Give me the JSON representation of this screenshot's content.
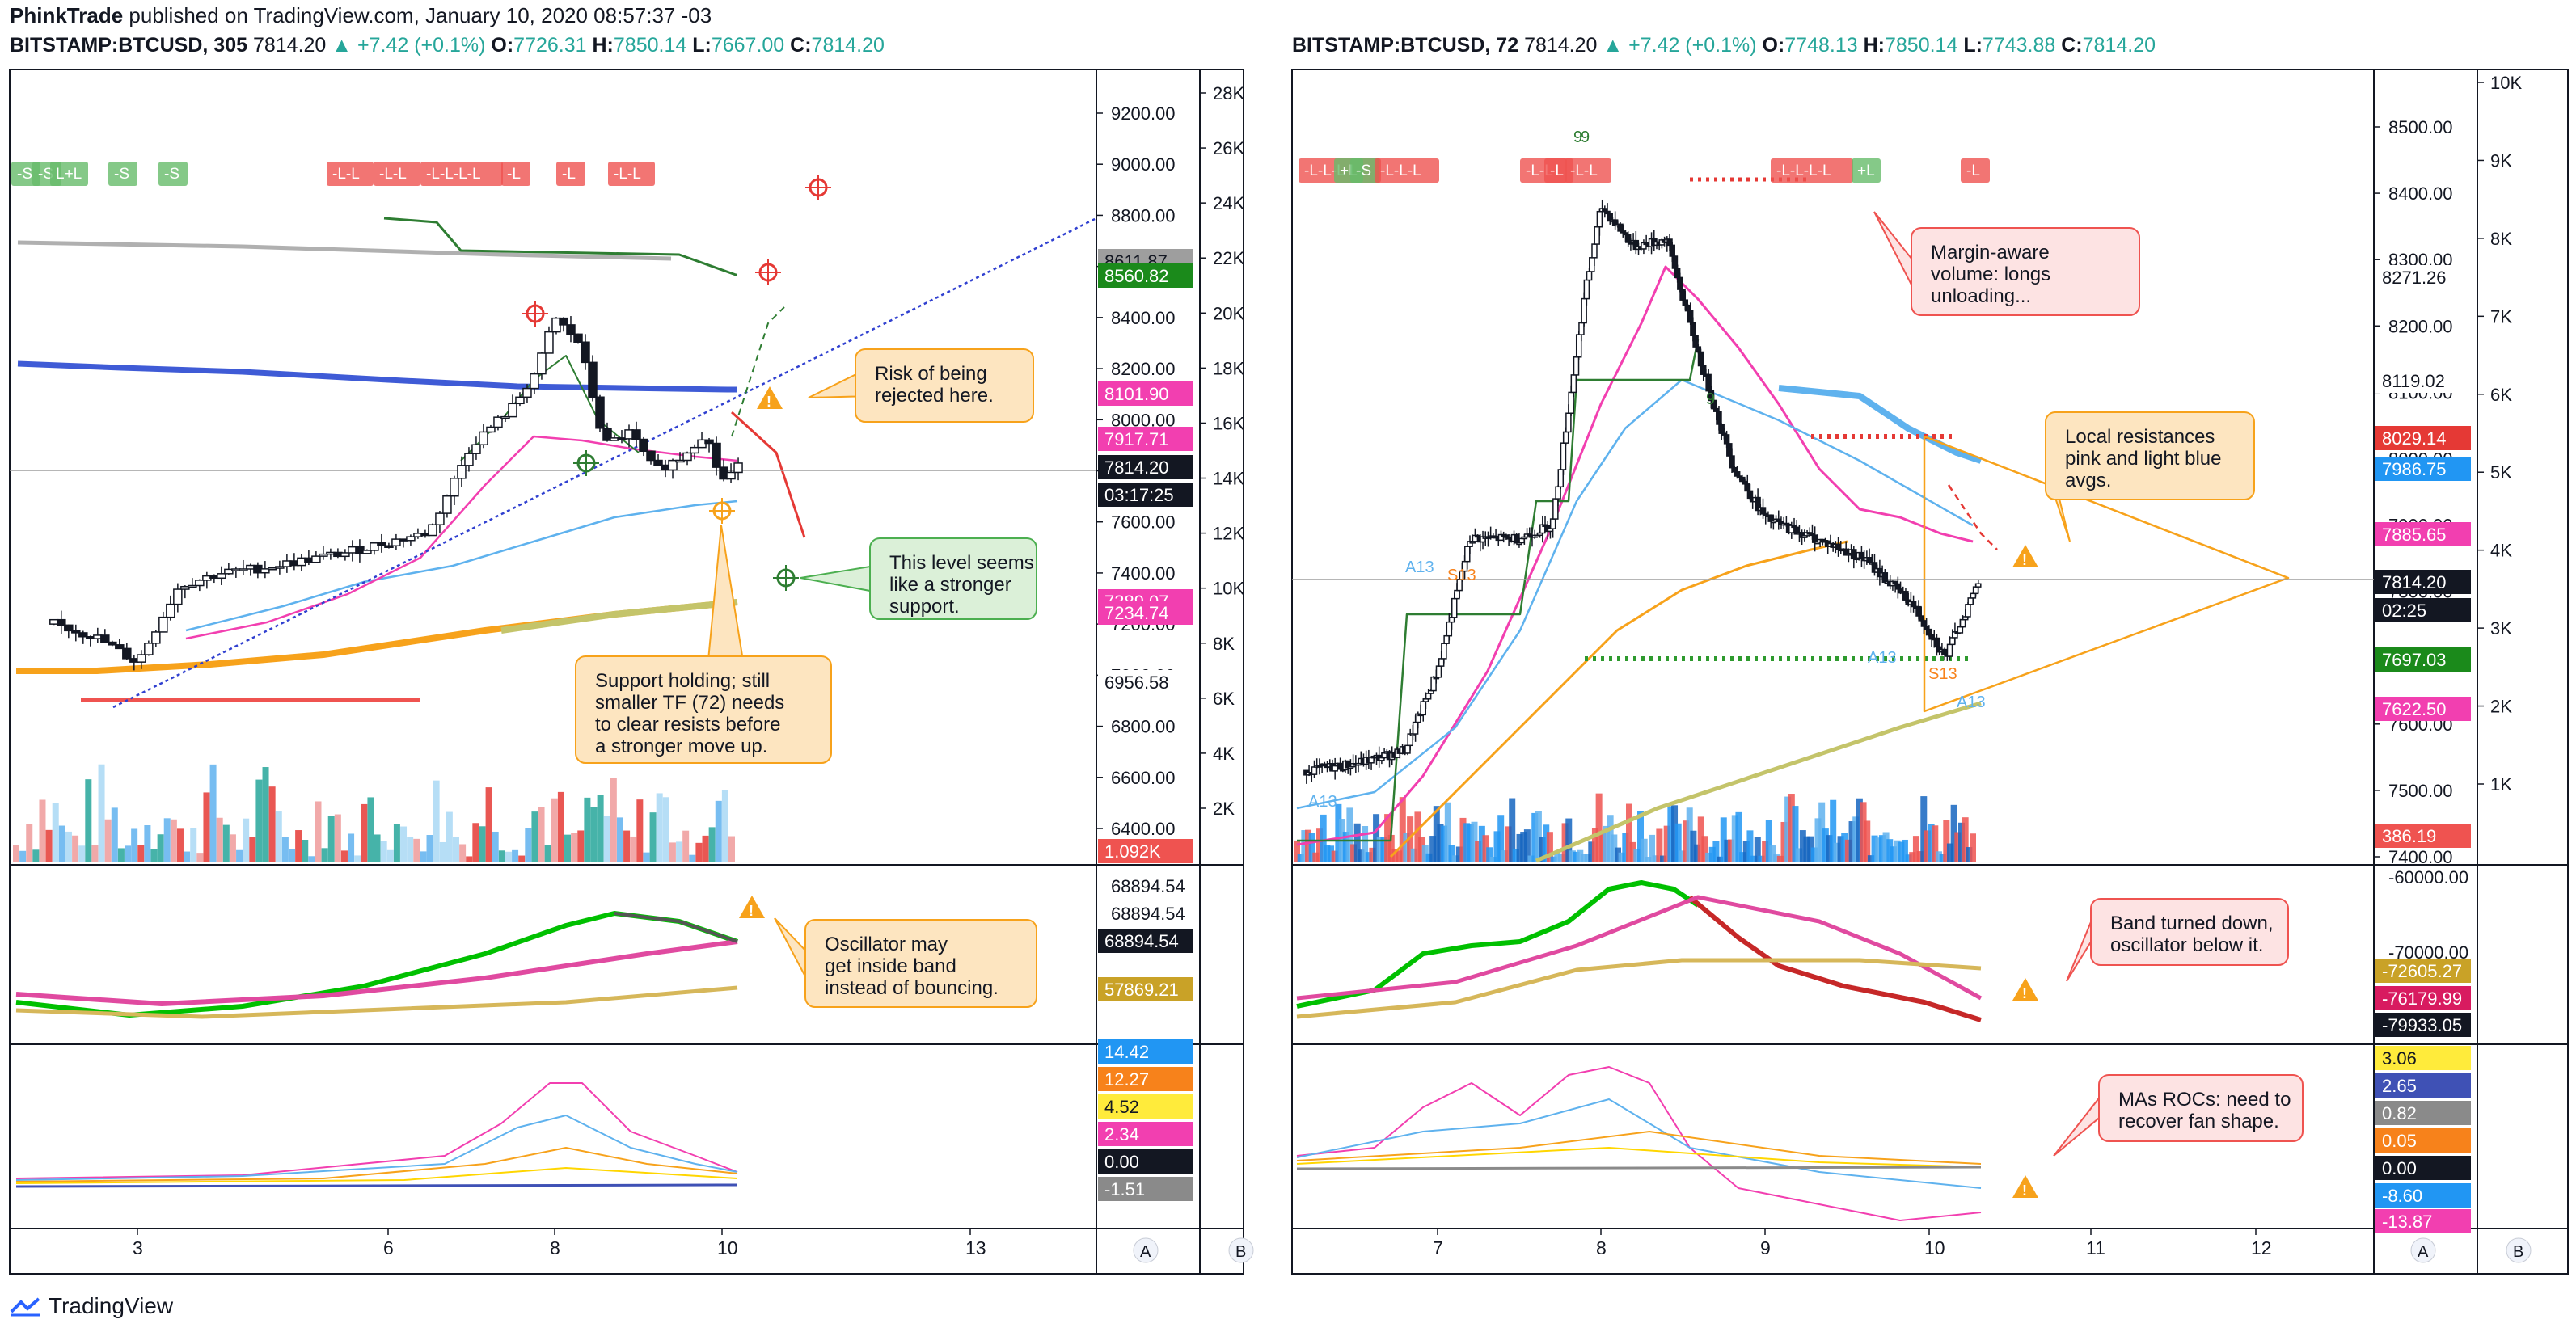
{
  "header": {
    "author": "PhinkTrade",
    "published_text": "published on TradingView.com, January 10, 2020 08:57:37 -03"
  },
  "footer": {
    "brand": "TradingView"
  },
  "colors": {
    "up": "#26a69a",
    "down": "#ef5350",
    "pink": "#f23fb0",
    "blue": "#3f5bd6",
    "lightblue": "#5fb2ee",
    "green": "#2e7d32",
    "orange": "#f7a21b",
    "olive": "#c4c46a",
    "gray": "#9e9e9e",
    "dark": "#131722"
  },
  "left": {
    "ohlc": {
      "symbol": "BITSTAMP:BTCUSD, 305",
      "last": "7814.20",
      "change": "+7.42 (+0.1%)",
      "o": "7726.31",
      "h": "7850.14",
      "l": "7667.00",
      "c": "7814.20"
    },
    "price_ticks": [
      "9200.00",
      "9000.00",
      "8800.00",
      "8600.00",
      "8400.00",
      "8200.00",
      "8000.00",
      "7800.00",
      "7600.00",
      "7400.00",
      "7200.00",
      "7000.00",
      "6800.00",
      "6600.00",
      "6400.00"
    ],
    "volume_ticks": [
      "28K",
      "26K",
      "24K",
      "22K",
      "20K",
      "18K",
      "16K",
      "14K",
      "12K",
      "10K",
      "8K",
      "6K",
      "4K",
      "2K"
    ],
    "price_labels": [
      {
        "text": "8611.87",
        "color": "#9e9e9e"
      },
      {
        "text": "8560.82",
        "color": "#1b8a1b"
      },
      {
        "text": "8101.90",
        "color": "#f23fb0"
      },
      {
        "text": "7917.71",
        "color": "#f23fb0"
      },
      {
        "text": "7814.20",
        "color": "#131722"
      },
      {
        "text": "03:17:25",
        "color": "#131722"
      },
      {
        "text": "7389.07",
        "color": "#f23fb0"
      },
      {
        "text": "7234.74",
        "color": "#f23fb0"
      },
      {
        "text": "6956.58",
        "color": "#ffffff"
      },
      {
        "text": "1.092K",
        "color": "#ef5350"
      }
    ],
    "time_ticks": [
      "3",
      "6",
      "8",
      "10",
      "13"
    ],
    "signal_labels": [
      "-S",
      "-S",
      "L+L",
      "-S",
      "-S",
      "-L-L",
      "-L-L",
      "-L-L-L-L",
      "-L",
      "-L",
      "-L-L"
    ],
    "osc_ticks": [
      "68894.54",
      "68894.54"
    ],
    "osc_labels": [
      {
        "text": "68894.54",
        "color": "#131722"
      },
      {
        "text": "57869.21",
        "color": "#c9a227"
      }
    ],
    "roc_labels": [
      {
        "text": "14.42",
        "color": "#2196f3"
      },
      {
        "text": "12.27",
        "color": "#f7821b"
      },
      {
        "text": "4.52",
        "color": "#ffeb3b"
      },
      {
        "text": "2.34",
        "color": "#f23fb0"
      },
      {
        "text": "0.00",
        "color": "#131722"
      },
      {
        "text": "-1.51",
        "color": "#8a8a8a"
      }
    ],
    "callouts": [
      {
        "text": [
          "Risk of being",
          "rejected here."
        ]
      },
      {
        "text": [
          "This level seems",
          "like a stronger",
          "support."
        ]
      },
      {
        "text": [
          "Support holding; still",
          "smaller TF (72) needs",
          "to clear resists before",
          "a stronger move up."
        ]
      },
      {
        "text": [
          "Oscillator may",
          "get inside band",
          "instead of bouncing."
        ]
      }
    ],
    "axis_buttons": [
      "A",
      "B"
    ]
  },
  "right": {
    "ohlc": {
      "symbol": "BITSTAMP:BTCUSD, 72",
      "last": "7814.20",
      "change": "+7.42 (+0.1%)",
      "o": "7748.13",
      "h": "7850.14",
      "l": "7743.88",
      "c": "7814.20"
    },
    "price_ticks": [
      "8500.00",
      "8400.00",
      "8300.00",
      "8200.00",
      "8100.00",
      "8000.00",
      "7900.00",
      "7800.00",
      "7700.00",
      "7600.00",
      "7500.00",
      "7400.00"
    ],
    "volume_ticks": [
      "10K",
      "9K",
      "8K",
      "7K",
      "6K",
      "5K",
      "4K",
      "3K",
      "2K",
      "1K"
    ],
    "price_labels": [
      {
        "text": "8271.26",
        "color": "#ffffff"
      },
      {
        "text": "8119.02",
        "color": "#ffffff"
      },
      {
        "text": "8029.14",
        "color": "#e53935"
      },
      {
        "text": "7986.75",
        "color": "#2196f3"
      },
      {
        "text": "7885.65",
        "color": "#f23fb0"
      },
      {
        "text": "7814.20",
        "color": "#131722"
      },
      {
        "text": "02:25",
        "color": "#131722"
      },
      {
        "text": "7697.03",
        "color": "#1b8a1b"
      },
      {
        "text": "7622.50",
        "color": "#f23fb0"
      },
      {
        "text": "386.19",
        "color": "#ef5350"
      }
    ],
    "time_ticks": [
      "7",
      "8",
      "9",
      "10",
      "11",
      "12"
    ],
    "signal_labels": [
      "-L-L-L-L",
      "+L",
      "-S",
      "-L-L-L",
      "-L-L",
      "-L",
      "-L-L",
      "-L-L-L-L",
      "+L",
      "-L"
    ],
    "candle_marks": [
      "9",
      "9",
      "9",
      "A13",
      "S13",
      "A13",
      "S13",
      "A13",
      "A13"
    ],
    "osc_ticks": [
      "-60000.00",
      "-70000.00"
    ],
    "osc_labels": [
      {
        "text": "-72605.27",
        "color": "#c9a227"
      },
      {
        "text": "-76179.99",
        "color": "#d81b60"
      },
      {
        "text": "-79933.05",
        "color": "#131722"
      }
    ],
    "roc_labels": [
      {
        "text": "3.06",
        "color": "#ffeb3b"
      },
      {
        "text": "2.65",
        "color": "#3f51b5"
      },
      {
        "text": "0.82",
        "color": "#8a8a8a"
      },
      {
        "text": "0.05",
        "color": "#f7821b"
      },
      {
        "text": "0.00",
        "color": "#131722"
      },
      {
        "text": "-8.60",
        "color": "#2196f3"
      },
      {
        "text": "-13.87",
        "color": "#f23fb0"
      }
    ],
    "callouts": [
      {
        "text": [
          "Margin-aware",
          "volume: longs",
          "unloading..."
        ]
      },
      {
        "text": [
          "Local resistances",
          "pink and light blue",
          "avgs."
        ]
      },
      {
        "text": [
          "Band turned down,",
          "oscillator below it."
        ]
      },
      {
        "text": [
          "MAs ROCs: need to",
          "recover fan shape."
        ]
      }
    ],
    "axis_buttons": [
      "A",
      "B"
    ]
  },
  "chart_data": [
    {
      "type": "candlestick",
      "title": "BITSTAMP:BTCUSD, 305",
      "x_ticks": [
        "3",
        "6",
        "8",
        "10",
        "13"
      ],
      "ylim": [
        6300,
        9300
      ],
      "series": [
        {
          "name": "close (approx)",
          "x": [
            2.0,
            2.5,
            3.0,
            3.5,
            4.0,
            4.5,
            5.0,
            5.5,
            6.0,
            6.5,
            7.0,
            7.5,
            7.8,
            8.0,
            8.3,
            8.6,
            8.9,
            9.2,
            9.5,
            9.8,
            10.0,
            10.2
          ],
          "values": [
            7200,
            7150,
            7050,
            7350,
            7400,
            7420,
            7450,
            7480,
            7520,
            7560,
            7900,
            8050,
            8200,
            8400,
            8300,
            7900,
            7950,
            7800,
            7850,
            7950,
            7760,
            7814
          ]
        }
      ]
    },
    {
      "type": "candlestick",
      "title": "BITSTAMP:BTCUSD, 72",
      "x_ticks": [
        "7",
        "8",
        "9",
        "10",
        "11",
        "12"
      ],
      "ylim": [
        7380,
        8560
      ],
      "series": [
        {
          "name": "close (approx)",
          "x": [
            6.2,
            6.5,
            6.8,
            7.0,
            7.2,
            7.5,
            7.7,
            7.9,
            8.0,
            8.2,
            8.4,
            8.6,
            8.8,
            9.0,
            9.3,
            9.6,
            9.9,
            10.1,
            10.3
          ],
          "values": [
            7530,
            7540,
            7560,
            7680,
            7880,
            7880,
            7900,
            8250,
            8380,
            8320,
            8330,
            8150,
            7990,
            7910,
            7880,
            7850,
            7780,
            7700,
            7814
          ]
        }
      ]
    }
  ]
}
